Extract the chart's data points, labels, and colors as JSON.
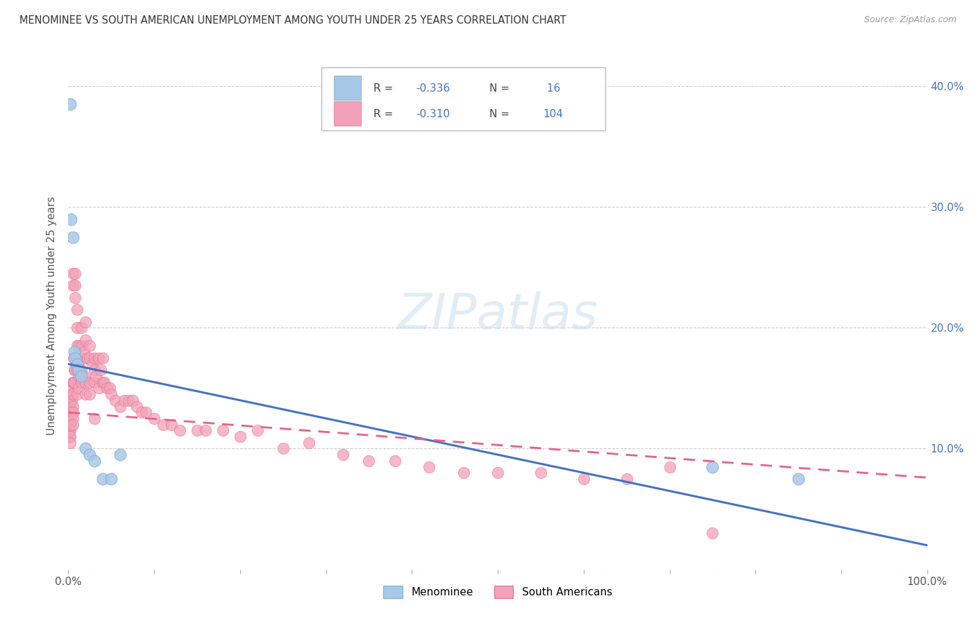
{
  "title": "MENOMINEE VS SOUTH AMERICAN UNEMPLOYMENT AMONG YOUTH UNDER 25 YEARS CORRELATION CHART",
  "source": "Source: ZipAtlas.com",
  "ylabel": "Unemployment Among Youth under 25 years",
  "xlim": [
    0,
    1.0
  ],
  "ylim": [
    0,
    0.42
  ],
  "xticks": [
    0.0,
    0.1,
    0.2,
    0.3,
    0.4,
    0.5,
    0.6,
    0.7,
    0.8,
    0.9,
    1.0
  ],
  "xticklabels": [
    "0.0%",
    "",
    "",
    "",
    "",
    "",
    "",
    "",
    "",
    "",
    "100.0%"
  ],
  "yticks_left": [],
  "yticks_right": [
    0.0,
    0.1,
    0.2,
    0.3,
    0.4
  ],
  "yticklabels_right": [
    "",
    "10.0%",
    "20.0%",
    "30.0%",
    "40.0%"
  ],
  "menominee_R": -0.336,
  "menominee_N": 16,
  "south_american_R": -0.31,
  "south_american_N": 104,
  "menominee_color": "#a8c8e8",
  "menominee_edge_color": "#7aaed4",
  "menominee_line_color": "#4472c4",
  "south_american_color": "#f4a0b8",
  "south_american_edge_color": "#e07090",
  "south_american_line_color": "#e8608a",
  "background_color": "#ffffff",
  "grid_color": "#cccccc",
  "watermark": "ZIPatlas",
  "legend_label_1": "Menominee",
  "legend_label_2": "South Americans",
  "menominee_x": [
    0.002,
    0.003,
    0.005,
    0.007,
    0.008,
    0.01,
    0.012,
    0.015,
    0.02,
    0.025,
    0.03,
    0.04,
    0.05,
    0.06,
    0.75,
    0.85
  ],
  "menominee_y": [
    0.385,
    0.29,
    0.275,
    0.18,
    0.175,
    0.17,
    0.165,
    0.16,
    0.1,
    0.095,
    0.09,
    0.075,
    0.075,
    0.095,
    0.085,
    0.075
  ],
  "south_american_x": [
    0.001,
    0.001,
    0.001,
    0.001,
    0.001,
    0.002,
    0.002,
    0.002,
    0.002,
    0.002,
    0.002,
    0.002,
    0.002,
    0.003,
    0.003,
    0.004,
    0.004,
    0.005,
    0.005,
    0.005,
    0.005,
    0.005,
    0.005,
    0.005,
    0.005,
    0.006,
    0.006,
    0.007,
    0.007,
    0.008,
    0.008,
    0.008,
    0.008,
    0.01,
    0.01,
    0.01,
    0.01,
    0.01,
    0.01,
    0.012,
    0.012,
    0.012,
    0.012,
    0.015,
    0.015,
    0.015,
    0.015,
    0.015,
    0.018,
    0.018,
    0.02,
    0.02,
    0.02,
    0.02,
    0.022,
    0.025,
    0.025,
    0.025,
    0.025,
    0.028,
    0.03,
    0.03,
    0.03,
    0.03,
    0.032,
    0.035,
    0.035,
    0.038,
    0.04,
    0.04,
    0.042,
    0.045,
    0.048,
    0.05,
    0.055,
    0.06,
    0.065,
    0.07,
    0.075,
    0.08,
    0.085,
    0.09,
    0.1,
    0.11,
    0.12,
    0.13,
    0.15,
    0.16,
    0.18,
    0.2,
    0.22,
    0.25,
    0.28,
    0.32,
    0.35,
    0.38,
    0.42,
    0.46,
    0.5,
    0.55,
    0.6,
    0.65,
    0.7,
    0.75
  ],
  "south_american_y": [
    0.14,
    0.13,
    0.12,
    0.115,
    0.11,
    0.145,
    0.135,
    0.13,
    0.125,
    0.12,
    0.115,
    0.11,
    0.105,
    0.14,
    0.13,
    0.15,
    0.14,
    0.245,
    0.235,
    0.155,
    0.145,
    0.135,
    0.13,
    0.125,
    0.12,
    0.175,
    0.155,
    0.165,
    0.155,
    0.245,
    0.235,
    0.225,
    0.165,
    0.215,
    0.2,
    0.185,
    0.175,
    0.165,
    0.145,
    0.185,
    0.17,
    0.16,
    0.15,
    0.2,
    0.185,
    0.175,
    0.165,
    0.155,
    0.18,
    0.16,
    0.205,
    0.19,
    0.155,
    0.145,
    0.175,
    0.185,
    0.175,
    0.155,
    0.145,
    0.17,
    0.175,
    0.165,
    0.155,
    0.125,
    0.16,
    0.175,
    0.15,
    0.165,
    0.175,
    0.155,
    0.155,
    0.15,
    0.15,
    0.145,
    0.14,
    0.135,
    0.14,
    0.14,
    0.14,
    0.135,
    0.13,
    0.13,
    0.125,
    0.12,
    0.12,
    0.115,
    0.115,
    0.115,
    0.115,
    0.11,
    0.115,
    0.1,
    0.105,
    0.095,
    0.09,
    0.09,
    0.085,
    0.08,
    0.08,
    0.08,
    0.075,
    0.075,
    0.085,
    0.03
  ],
  "menominee_line_x0": 0.0,
  "menominee_line_y0": 0.17,
  "menominee_line_x1": 1.0,
  "menominee_line_y1": 0.02,
  "sa_line_x0": 0.0,
  "sa_line_y0": 0.13,
  "sa_line_x1": 1.0,
  "sa_line_y1": 0.076
}
